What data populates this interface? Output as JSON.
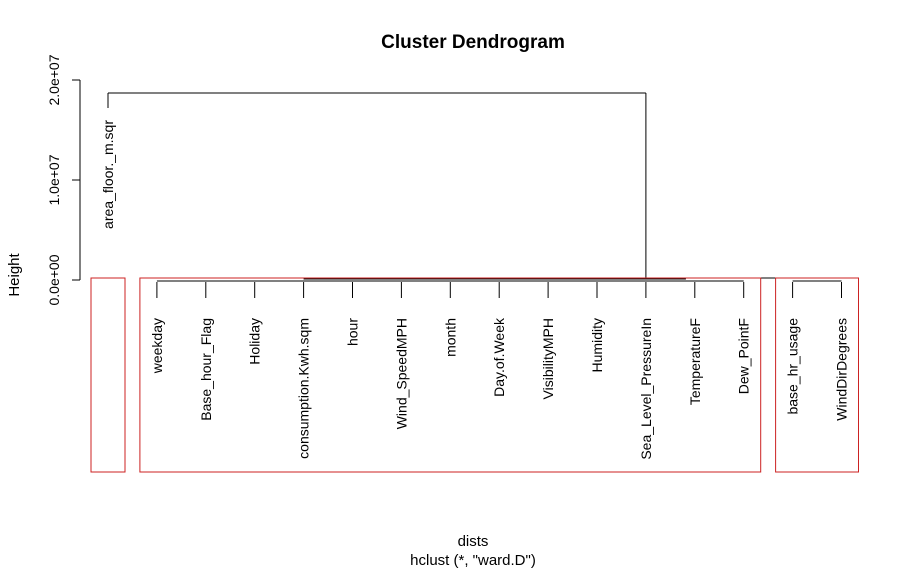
{
  "chart_data": {
    "type": "dendrogram",
    "title": "Cluster Dendrogram",
    "xlabel": "dists",
    "sub": "hclust (*, \"ward.D\")",
    "ylabel": "Height",
    "ylim": [
      0,
      20000000
    ],
    "y_ticks": [
      {
        "value": 0,
        "label": "0.0e+00"
      },
      {
        "value": 10000000,
        "label": "1.0e+07"
      },
      {
        "value": 20000000,
        "label": "2.0e+07"
      }
    ],
    "leaves": [
      "area_floor._m.sqr",
      "weekday",
      "Base_hour_Flag",
      "Holiday",
      "consumption.Kwh.sqm",
      "hour",
      "Wind_SpeedMPH",
      "month",
      "Day.of.Week",
      "VisibilityMPH",
      "Humidity",
      "Sea_Level_PressureIn",
      "TemperatureF",
      "Dew_PointF",
      "base_hr_usage",
      "WindDirDegrees"
    ],
    "merges": [
      {
        "left": 1,
        "right": 2,
        "height": 0
      },
      {
        "left": 3,
        "right": 4,
        "height": 0
      },
      {
        "left": 6,
        "right": 7,
        "height": 0
      },
      {
        "left": 9,
        "right": 10,
        "height": 0
      },
      {
        "left": 12,
        "right": 13,
        "height": 0
      },
      {
        "left": 14,
        "right": 15,
        "height": 0
      },
      {
        "left": 0,
        "right": 11,
        "height": 18700000
      }
    ],
    "cluster_boxes": [
      {
        "first": 0,
        "last": 0
      },
      {
        "first": 1,
        "last": 13
      },
      {
        "first": 14,
        "last": 15
      }
    ],
    "colors": {
      "tree": "#000000",
      "boxes": "#cc2222",
      "axis": "#000000"
    }
  }
}
